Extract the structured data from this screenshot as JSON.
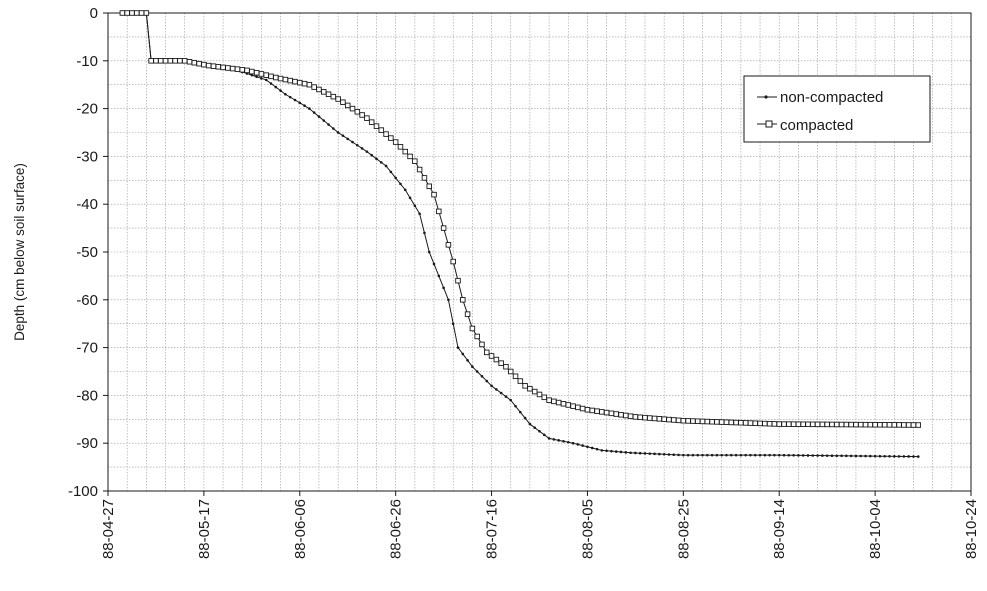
{
  "chart_data": {
    "type": "line",
    "title": "",
    "xlabel": "",
    "ylabel": "Depth (cm below soil surface)",
    "x_ticks": [
      "88-04-27",
      "88-05-17",
      "88-06-06",
      "88-06-26",
      "88-07-16",
      "88-08-05",
      "88-08-25",
      "88-09-14",
      "88-10-04",
      "88-10-24"
    ],
    "y_ticks": [
      0,
      -10,
      -20,
      -30,
      -40,
      -50,
      -60,
      -70,
      -80,
      -90,
      -100
    ],
    "xlim": [
      "1988-04-27",
      "1988-10-24"
    ],
    "ylim": [
      -100,
      0
    ],
    "grid": true,
    "legend_position": "right",
    "series": [
      {
        "name": "non-compacted",
        "color": "#1a1a1a",
        "marker": "dot",
        "points": [
          [
            "1988-04-30",
            0
          ],
          [
            "1988-05-05",
            0
          ],
          [
            "1988-05-06",
            -10
          ],
          [
            "1988-05-13",
            -10
          ],
          [
            "1988-05-18",
            -11
          ],
          [
            "1988-05-24",
            -12
          ],
          [
            "1988-05-30",
            -14
          ],
          [
            "1988-06-03",
            -17
          ],
          [
            "1988-06-08",
            -20
          ],
          [
            "1988-06-14",
            -25
          ],
          [
            "1988-06-20",
            -29
          ],
          [
            "1988-06-24",
            -32
          ],
          [
            "1988-06-28",
            -37
          ],
          [
            "1988-07-01",
            -42
          ],
          [
            "1988-07-03",
            -50
          ],
          [
            "1988-07-05",
            -55
          ],
          [
            "1988-07-07",
            -60
          ],
          [
            "1988-07-09",
            -70
          ],
          [
            "1988-07-12",
            -74
          ],
          [
            "1988-07-16",
            -78
          ],
          [
            "1988-07-20",
            -81
          ],
          [
            "1988-07-24",
            -86
          ],
          [
            "1988-07-28",
            -89
          ],
          [
            "1988-08-02",
            -90
          ],
          [
            "1988-08-08",
            -91.5
          ],
          [
            "1988-08-14",
            -92
          ],
          [
            "1988-08-25",
            -92.5
          ],
          [
            "1988-09-14",
            -92.5
          ],
          [
            "1988-10-13",
            -92.8
          ]
        ]
      },
      {
        "name": "compacted",
        "color": "#1a1a1a",
        "marker": "square",
        "points": [
          [
            "1988-04-30",
            0
          ],
          [
            "1988-05-05",
            0
          ],
          [
            "1988-05-06",
            -10
          ],
          [
            "1988-05-13",
            -10
          ],
          [
            "1988-05-18",
            -11
          ],
          [
            "1988-05-26",
            -12
          ],
          [
            "1988-06-01",
            -13.5
          ],
          [
            "1988-06-08",
            -15
          ],
          [
            "1988-06-14",
            -18
          ],
          [
            "1988-06-20",
            -22
          ],
          [
            "1988-06-26",
            -27
          ],
          [
            "1988-06-30",
            -31
          ],
          [
            "1988-07-04",
            -38
          ],
          [
            "1988-07-06",
            -45
          ],
          [
            "1988-07-08",
            -52
          ],
          [
            "1988-07-10",
            -60
          ],
          [
            "1988-07-12",
            -66
          ],
          [
            "1988-07-15",
            -71
          ],
          [
            "1988-07-19",
            -74
          ],
          [
            "1988-07-23",
            -78
          ],
          [
            "1988-07-28",
            -81
          ],
          [
            "1988-08-05",
            -83
          ],
          [
            "1988-08-15",
            -84.5
          ],
          [
            "1988-08-25",
            -85.3
          ],
          [
            "1988-09-14",
            -86
          ],
          [
            "1988-10-13",
            -86.2
          ]
        ]
      }
    ]
  }
}
